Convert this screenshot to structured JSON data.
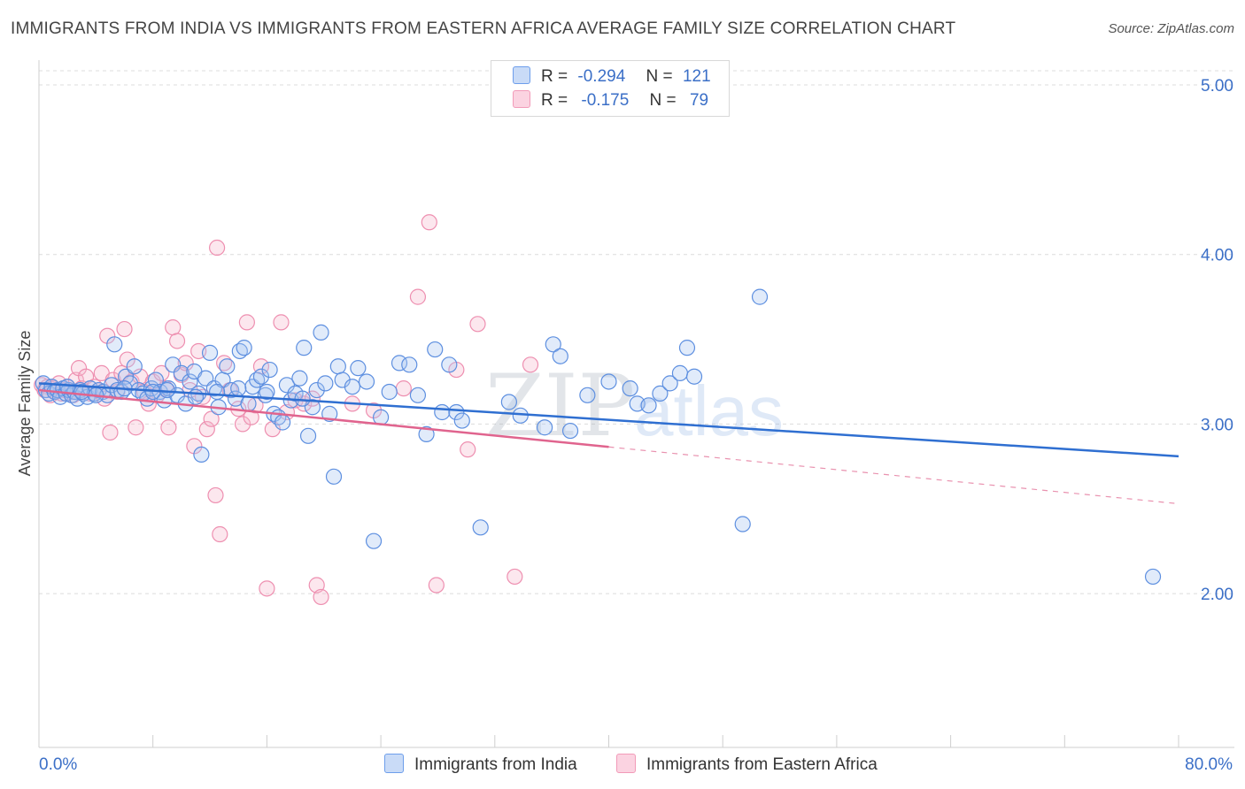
{
  "header": {
    "title": "IMMIGRANTS FROM INDIA VS IMMIGRANTS FROM EASTERN AFRICA AVERAGE FAMILY SIZE CORRELATION CHART",
    "source": "Source: ZipAtlas.com"
  },
  "legend": {
    "india": {
      "r_label": "R =",
      "r_value": "-0.294",
      "n_label": "N =",
      "n_value": "121"
    },
    "eafrica": {
      "r_label": "R =",
      "r_value": "-0.175",
      "n_label": "N =",
      "n_value": "79"
    }
  },
  "watermark": {
    "zip": "ZIP",
    "atlas": "atlas"
  },
  "chart_data": {
    "type": "scatter",
    "title": "IMMIGRANTS FROM INDIA VS IMMIGRANTS FROM EASTERN AFRICA AVERAGE FAMILY SIZE CORRELATION CHART",
    "xlabel": "",
    "ylabel": "Average Family Size",
    "xlim": [
      0,
      80
    ],
    "ylim": [
      1.0,
      5.2
    ],
    "x_tick_labels": [
      "0.0%",
      "80.0%"
    ],
    "y_ticks": [
      2.0,
      3.0,
      4.0,
      5.0
    ],
    "y_tick_labels": [
      "2.00",
      "3.00",
      "4.00",
      "5.00"
    ],
    "grid": true,
    "colors": {
      "india": "#6d9eeb",
      "india_line": "#2f6fd1",
      "eafrica": "#f29ab8",
      "eafrica_line": "#e0648e"
    },
    "series": [
      {
        "name": "Immigrants from India",
        "color": "#6d9eeb",
        "trend": {
          "x": [
            0,
            80
          ],
          "y": [
            3.24,
            2.81
          ],
          "dashed_from": null
        },
        "points": [
          [
            0.3,
            3.24
          ],
          [
            0.5,
            3.2
          ],
          [
            0.7,
            3.18
          ],
          [
            0.9,
            3.22
          ],
          [
            1.1,
            3.19
          ],
          [
            1.3,
            3.2
          ],
          [
            1.5,
            3.16
          ],
          [
            1.7,
            3.21
          ],
          [
            1.9,
            3.18
          ],
          [
            2.1,
            3.2
          ],
          [
            2.3,
            3.17
          ],
          [
            2.5,
            3.19
          ],
          [
            2.7,
            3.15
          ],
          [
            2.9,
            3.2
          ],
          [
            3.1,
            3.18
          ],
          [
            3.4,
            3.16
          ],
          [
            3.6,
            3.21
          ],
          [
            3.9,
            3.18
          ],
          [
            4.2,
            3.2
          ],
          [
            4.5,
            3.19
          ],
          [
            4.8,
            3.17
          ],
          [
            5.1,
            3.23
          ],
          [
            5.3,
            3.47
          ],
          [
            5.5,
            3.2
          ],
          [
            5.8,
            3.19
          ],
          [
            6.1,
            3.28
          ],
          [
            6.4,
            3.24
          ],
          [
            6.7,
            3.34
          ],
          [
            7.0,
            3.2
          ],
          [
            7.3,
            3.18
          ],
          [
            7.6,
            3.15
          ],
          [
            7.9,
            3.21
          ],
          [
            8.2,
            3.26
          ],
          [
            8.5,
            3.19
          ],
          [
            8.8,
            3.14
          ],
          [
            9.1,
            3.21
          ],
          [
            9.4,
            3.35
          ],
          [
            9.7,
            3.17
          ],
          [
            10.0,
            3.3
          ],
          [
            10.3,
            3.12
          ],
          [
            10.6,
            3.25
          ],
          [
            10.9,
            3.31
          ],
          [
            11.2,
            3.18
          ],
          [
            11.4,
            2.82
          ],
          [
            11.7,
            3.27
          ],
          [
            12.0,
            3.42
          ],
          [
            12.3,
            3.21
          ],
          [
            12.6,
            3.1
          ],
          [
            12.9,
            3.26
          ],
          [
            13.2,
            3.34
          ],
          [
            13.5,
            3.2
          ],
          [
            13.8,
            3.15
          ],
          [
            14.1,
            3.43
          ],
          [
            14.4,
            3.45
          ],
          [
            14.7,
            3.12
          ],
          [
            15.0,
            3.22
          ],
          [
            15.3,
            3.26
          ],
          [
            15.6,
            3.28
          ],
          [
            15.9,
            3.17
          ],
          [
            16.2,
            3.32
          ],
          [
            16.5,
            3.06
          ],
          [
            16.8,
            3.04
          ],
          [
            17.1,
            3.01
          ],
          [
            17.4,
            3.23
          ],
          [
            17.7,
            3.14
          ],
          [
            18.0,
            3.18
          ],
          [
            18.3,
            3.27
          ],
          [
            18.6,
            3.45
          ],
          [
            18.9,
            2.93
          ],
          [
            19.2,
            3.1
          ],
          [
            19.5,
            3.2
          ],
          [
            19.8,
            3.54
          ],
          [
            20.1,
            3.24
          ],
          [
            20.4,
            3.06
          ],
          [
            20.7,
            2.69
          ],
          [
            21.0,
            3.34
          ],
          [
            21.3,
            3.26
          ],
          [
            22.0,
            3.22
          ],
          [
            22.4,
            3.33
          ],
          [
            23.0,
            3.25
          ],
          [
            23.5,
            2.31
          ],
          [
            24.0,
            3.04
          ],
          [
            24.6,
            3.19
          ],
          [
            25.3,
            3.36
          ],
          [
            26.0,
            3.35
          ],
          [
            26.6,
            3.17
          ],
          [
            27.2,
            2.94
          ],
          [
            27.8,
            3.44
          ],
          [
            28.3,
            3.07
          ],
          [
            28.8,
            3.35
          ],
          [
            29.3,
            3.07
          ],
          [
            29.7,
            3.02
          ],
          [
            31.0,
            2.39
          ],
          [
            33.0,
            3.13
          ],
          [
            33.8,
            3.05
          ],
          [
            35.5,
            2.98
          ],
          [
            36.1,
            3.47
          ],
          [
            36.6,
            3.4
          ],
          [
            37.3,
            2.96
          ],
          [
            38.5,
            3.17
          ],
          [
            40.0,
            3.25
          ],
          [
            41.5,
            3.21
          ],
          [
            42.0,
            3.12
          ],
          [
            42.8,
            3.11
          ],
          [
            43.6,
            3.18
          ],
          [
            44.3,
            3.24
          ],
          [
            45.0,
            3.3
          ],
          [
            45.5,
            3.45
          ],
          [
            46.0,
            3.28
          ],
          [
            49.4,
            2.41
          ],
          [
            50.6,
            3.75
          ],
          [
            78.2,
            2.1
          ],
          [
            2.0,
            3.22
          ],
          [
            3.0,
            3.19
          ],
          [
            4.0,
            3.17
          ],
          [
            6.0,
            3.21
          ],
          [
            8.0,
            3.19
          ],
          [
            9.0,
            3.2
          ],
          [
            11.0,
            3.16
          ],
          [
            12.5,
            3.19
          ],
          [
            14.0,
            3.21
          ],
          [
            16.0,
            3.19
          ],
          [
            18.5,
            3.15
          ]
        ]
      },
      {
        "name": "Immigrants from Eastern Africa",
        "color": "#f29ab8",
        "trend": {
          "x": [
            0,
            80
          ],
          "y": [
            3.2,
            2.53
          ],
          "solid_until": 40
        },
        "points": [
          [
            0.2,
            3.23
          ],
          [
            0.4,
            3.2
          ],
          [
            0.6,
            3.22
          ],
          [
            0.8,
            3.17
          ],
          [
            1.0,
            3.21
          ],
          [
            1.2,
            3.19
          ],
          [
            1.4,
            3.24
          ],
          [
            1.6,
            3.18
          ],
          [
            1.8,
            3.2
          ],
          [
            2.0,
            3.22
          ],
          [
            2.2,
            3.19
          ],
          [
            2.4,
            3.17
          ],
          [
            2.6,
            3.26
          ],
          [
            2.8,
            3.33
          ],
          [
            3.0,
            3.21
          ],
          [
            3.3,
            3.28
          ],
          [
            3.6,
            3.18
          ],
          [
            3.9,
            3.22
          ],
          [
            4.2,
            3.2
          ],
          [
            4.4,
            3.3
          ],
          [
            4.6,
            3.15
          ],
          [
            4.8,
            3.52
          ],
          [
            5.0,
            2.95
          ],
          [
            5.2,
            3.26
          ],
          [
            5.5,
            3.19
          ],
          [
            5.8,
            3.3
          ],
          [
            6.0,
            3.56
          ],
          [
            6.2,
            3.38
          ],
          [
            6.5,
            3.25
          ],
          [
            6.8,
            2.98
          ],
          [
            7.1,
            3.28
          ],
          [
            7.4,
            3.19
          ],
          [
            7.7,
            3.12
          ],
          [
            8.0,
            3.25
          ],
          [
            8.3,
            3.17
          ],
          [
            8.6,
            3.3
          ],
          [
            8.9,
            3.21
          ],
          [
            9.1,
            2.98
          ],
          [
            9.4,
            3.57
          ],
          [
            9.7,
            3.49
          ],
          [
            10.0,
            3.29
          ],
          [
            10.3,
            3.36
          ],
          [
            10.6,
            3.2
          ],
          [
            10.9,
            2.87
          ],
          [
            11.2,
            3.43
          ],
          [
            11.5,
            3.16
          ],
          [
            11.8,
            2.97
          ],
          [
            12.1,
            3.03
          ],
          [
            12.4,
            2.58
          ],
          [
            12.7,
            2.35
          ],
          [
            13.0,
            3.36
          ],
          [
            13.4,
            3.2
          ],
          [
            14.0,
            3.09
          ],
          [
            14.3,
            3.0
          ],
          [
            14.6,
            3.6
          ],
          [
            14.9,
            3.04
          ],
          [
            15.2,
            3.11
          ],
          [
            15.6,
            3.34
          ],
          [
            16.0,
            2.03
          ],
          [
            16.4,
            2.97
          ],
          [
            17.0,
            3.6
          ],
          [
            17.4,
            3.07
          ],
          [
            18.0,
            3.14
          ],
          [
            18.6,
            3.12
          ],
          [
            19.2,
            3.15
          ],
          [
            19.5,
            2.05
          ],
          [
            19.8,
            1.98
          ],
          [
            22.0,
            3.12
          ],
          [
            23.5,
            3.08
          ],
          [
            25.6,
            3.21
          ],
          [
            26.6,
            3.75
          ],
          [
            27.4,
            4.19
          ],
          [
            27.9,
            2.05
          ],
          [
            29.3,
            3.32
          ],
          [
            30.1,
            2.85
          ],
          [
            30.8,
            3.59
          ],
          [
            33.4,
            2.1
          ],
          [
            34.5,
            3.35
          ],
          [
            12.5,
            4.04
          ]
        ]
      }
    ]
  },
  "bottom_legend": {
    "india_label": "Immigrants from India",
    "eafrica_label": "Immigrants from Eastern Africa"
  }
}
